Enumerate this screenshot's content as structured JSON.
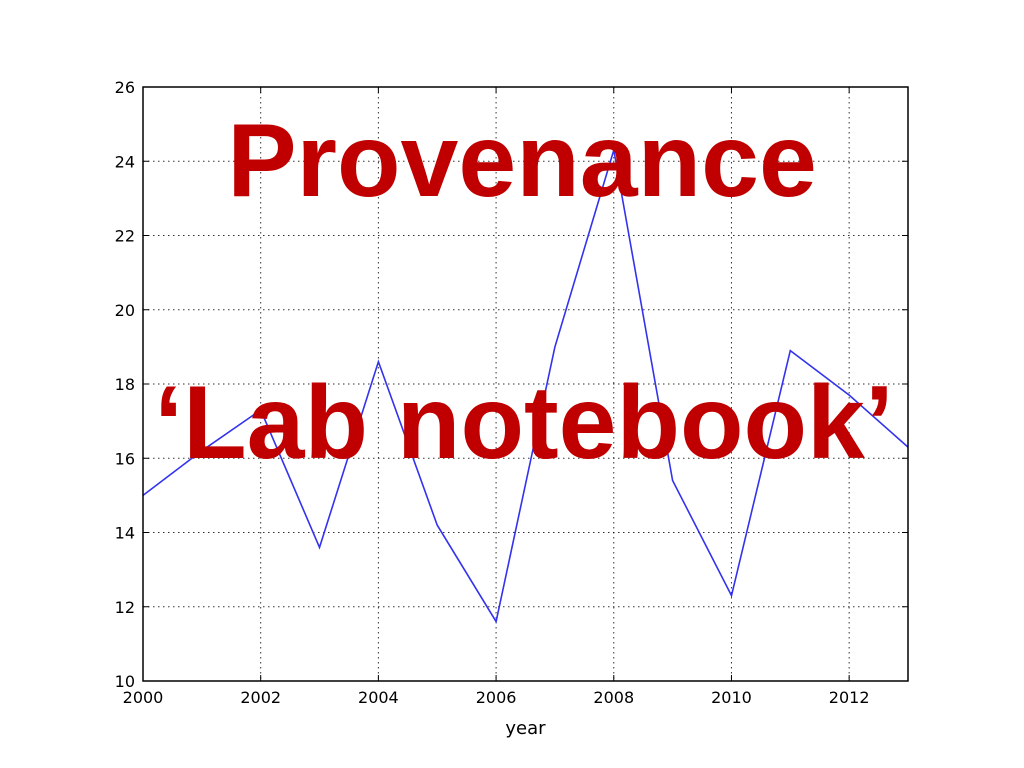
{
  "chart_data": {
    "type": "line",
    "title": "",
    "xlabel": "year",
    "ylabel": "",
    "xlim": [
      2000,
      2013
    ],
    "ylim": [
      10,
      26
    ],
    "grid": true,
    "x_ticks": [
      "2000",
      "2002",
      "2004",
      "2006",
      "2008",
      "2010",
      "2012"
    ],
    "y_ticks": [
      "10",
      "12",
      "14",
      "16",
      "18",
      "20",
      "22",
      "24",
      "26"
    ],
    "series": [
      {
        "color": "#3333ee",
        "x": [
          2000,
          2001,
          2002,
          2003,
          2004,
          2005,
          2006,
          2007,
          2008,
          2009,
          2010,
          2011,
          2012,
          2013
        ],
        "y": [
          15.0,
          16.2,
          17.3,
          13.6,
          18.6,
          14.2,
          11.6,
          19.0,
          24.3,
          15.4,
          12.3,
          18.9,
          17.7,
          16.3
        ]
      }
    ]
  },
  "overlay": {
    "line1": "Provenance",
    "line2": "‘Lab notebook’",
    "color": "#c00000"
  }
}
